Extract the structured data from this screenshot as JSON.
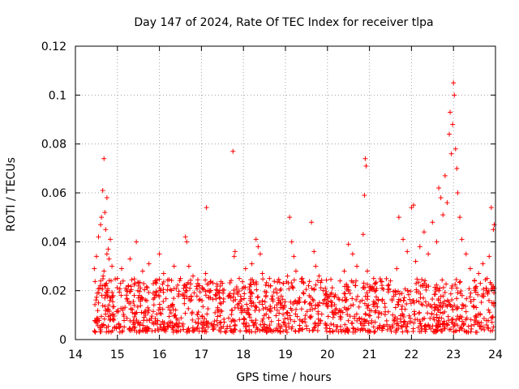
{
  "chart_data": {
    "type": "scatter",
    "title": "Day 147 of 2024, Rate Of TEC Index for receiver tlpa",
    "xlabel": "GPS time / hours",
    "ylabel": "ROTI / TECUs",
    "xlim": [
      14,
      24
    ],
    "ylim": [
      0,
      0.12
    ],
    "xticks": [
      "14",
      "15",
      "16",
      "17",
      "18",
      "19",
      "20",
      "21",
      "22",
      "23",
      "24"
    ],
    "yticks": [
      "0",
      "0.02",
      "0.04",
      "0.06",
      "0.08",
      "0.1",
      "0.12"
    ],
    "grid": true,
    "marker": "+",
    "color": "#ff0000",
    "series": [
      {
        "name": "ROTI",
        "x": [
          14.45,
          14.5,
          14.55,
          14.6,
          14.62,
          14.65,
          14.68,
          14.7,
          14.72,
          14.75,
          14.78,
          14.8,
          14.83,
          14.87,
          14.6,
          14.68,
          14.72,
          14.75,
          14.52,
          14.55,
          14.58,
          14.63,
          14.66,
          14.7,
          14.74,
          14.77,
          14.82,
          14.85,
          14.9,
          15.0,
          15.1,
          15.2,
          15.3,
          15.45,
          15.6,
          15.75,
          15.9,
          16.0,
          16.1,
          16.2,
          16.35,
          16.5,
          16.62,
          16.65,
          16.7,
          16.8,
          16.95,
          17.1,
          17.12,
          17.2,
          17.35,
          17.5,
          17.7,
          17.75,
          17.78,
          17.8,
          17.9,
          18.05,
          18.2,
          18.3,
          18.35,
          18.4,
          18.45,
          18.6,
          18.8,
          18.95,
          19.05,
          19.1,
          19.15,
          19.2,
          19.25,
          19.4,
          19.55,
          19.62,
          19.68,
          19.72,
          19.8,
          19.95,
          20.1,
          20.3,
          20.4,
          20.5,
          20.6,
          20.7,
          20.85,
          20.88,
          20.9,
          20.92,
          20.95,
          21.1,
          21.3,
          21.5,
          21.65,
          21.7,
          21.8,
          21.9,
          22.0,
          22.05,
          22.1,
          22.2,
          22.3,
          22.4,
          22.5,
          22.6,
          22.65,
          22.7,
          22.75,
          22.8,
          22.85,
          22.9,
          22.92,
          22.95,
          22.98,
          23.0,
          23.02,
          23.05,
          23.08,
          23.1,
          23.15,
          23.2,
          23.3,
          23.4,
          23.5,
          23.6,
          23.7,
          23.8,
          23.85,
          23.9,
          23.95,
          23.97
        ],
        "y": [
          0.029,
          0.034,
          0.042,
          0.047,
          0.05,
          0.061,
          0.074,
          0.052,
          0.045,
          0.058,
          0.037,
          0.033,
          0.041,
          0.03,
          0.024,
          0.028,
          0.022,
          0.035,
          0.019,
          0.015,
          0.021,
          0.018,
          0.026,
          0.017,
          0.023,
          0.02,
          0.016,
          0.024,
          0.018,
          0.025,
          0.029,
          0.021,
          0.033,
          0.04,
          0.028,
          0.031,
          0.024,
          0.035,
          0.027,
          0.022,
          0.03,
          0.025,
          0.042,
          0.04,
          0.03,
          0.026,
          0.022,
          0.027,
          0.054,
          0.02,
          0.018,
          0.023,
          0.017,
          0.077,
          0.034,
          0.036,
          0.025,
          0.029,
          0.031,
          0.041,
          0.038,
          0.035,
          0.027,
          0.022,
          0.019,
          0.023,
          0.026,
          0.05,
          0.04,
          0.034,
          0.028,
          0.025,
          0.022,
          0.048,
          0.036,
          0.03,
          0.026,
          0.021,
          0.019,
          0.024,
          0.028,
          0.039,
          0.035,
          0.03,
          0.043,
          0.059,
          0.074,
          0.071,
          0.028,
          0.025,
          0.021,
          0.024,
          0.029,
          0.05,
          0.041,
          0.036,
          0.054,
          0.055,
          0.032,
          0.038,
          0.044,
          0.035,
          0.048,
          0.04,
          0.062,
          0.058,
          0.051,
          0.067,
          0.056,
          0.084,
          0.093,
          0.076,
          0.088,
          0.105,
          0.1,
          0.078,
          0.07,
          0.06,
          0.05,
          0.041,
          0.035,
          0.029,
          0.024,
          0.027,
          0.031,
          0.025,
          0.034,
          0.054,
          0.045,
          0.047
        ],
        "band": {
          "x_range": [
            14.45,
            23.97
          ],
          "typical_range": [
            0.003,
            0.025
          ]
        }
      }
    ]
  }
}
